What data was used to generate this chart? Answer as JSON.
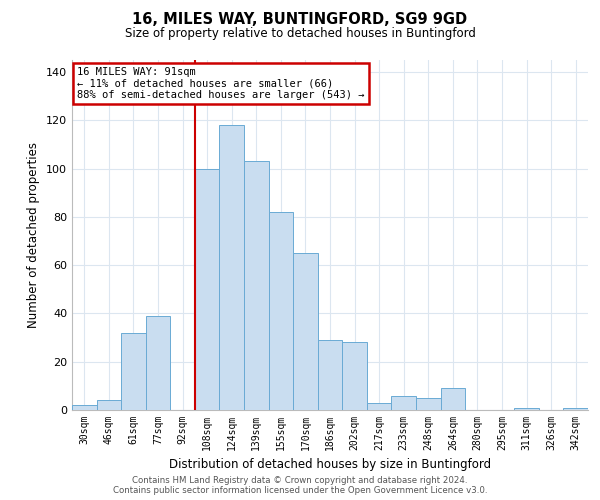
{
  "title": "16, MILES WAY, BUNTINGFORD, SG9 9GD",
  "subtitle": "Size of property relative to detached houses in Buntingford",
  "xlabel": "Distribution of detached houses by size in Buntingford",
  "ylabel": "Number of detached properties",
  "footnote1": "Contains HM Land Registry data © Crown copyright and database right 2024.",
  "footnote2": "Contains public sector information licensed under the Open Government Licence v3.0.",
  "bar_labels": [
    "30sqm",
    "46sqm",
    "61sqm",
    "77sqm",
    "92sqm",
    "108sqm",
    "124sqm",
    "139sqm",
    "155sqm",
    "170sqm",
    "186sqm",
    "202sqm",
    "217sqm",
    "233sqm",
    "248sqm",
    "264sqm",
    "280sqm",
    "295sqm",
    "311sqm",
    "326sqm",
    "342sqm"
  ],
  "bar_values": [
    2,
    4,
    32,
    39,
    0,
    100,
    118,
    103,
    82,
    65,
    29,
    28,
    3,
    6,
    5,
    9,
    0,
    0,
    1,
    0,
    1
  ],
  "bar_color": "#c9ddf0",
  "bar_edge_color": "#6aaad4",
  "vline_color": "#cc0000",
  "vline_pos": 4.5,
  "annotation_text": "16 MILES WAY: 91sqm\n← 11% of detached houses are smaller (66)\n88% of semi-detached houses are larger (543) →",
  "annotation_box_edge_color": "#cc0000",
  "annotation_text_color": "#000000",
  "ylim": [
    0,
    145
  ],
  "yticks": [
    0,
    20,
    40,
    60,
    80,
    100,
    120,
    140
  ],
  "background_color": "#ffffff",
  "grid_color": "#dce6f0"
}
